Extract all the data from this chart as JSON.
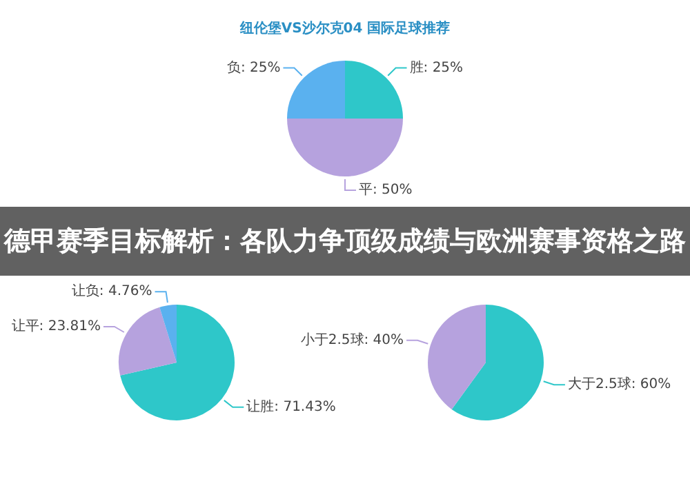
{
  "chart_data": [
    {
      "type": "pie",
      "title": "纽伦堡VS沙尔克04 国际足球推荐",
      "categories": [
        "胜",
        "平",
        "负"
      ],
      "values": [
        25,
        50,
        25
      ],
      "value_labels": [
        "25%",
        "50%",
        "25%"
      ],
      "colors": [
        "#2ec7c9",
        "#b6a2de",
        "#5ab1ef"
      ],
      "annotations": [
        "德甲赛季目标解析：各队力争顶级成绩与欧洲赛事资格之路"
      ]
    },
    {
      "type": "pie",
      "categories": [
        "让胜",
        "让平",
        "让负"
      ],
      "values": [
        71.43,
        23.81,
        4.76
      ],
      "value_labels": [
        "71.43%",
        "23.81%",
        "4.76%"
      ],
      "colors": [
        "#2ec7c9",
        "#b6a2de",
        "#5ab1ef"
      ]
    },
    {
      "type": "pie",
      "categories": [
        "大于2.5球",
        "小于2.5球"
      ],
      "values": [
        60,
        40
      ],
      "value_labels": [
        "60%",
        "40%"
      ],
      "colors": [
        "#2ec7c9",
        "#b6a2de"
      ]
    }
  ]
}
